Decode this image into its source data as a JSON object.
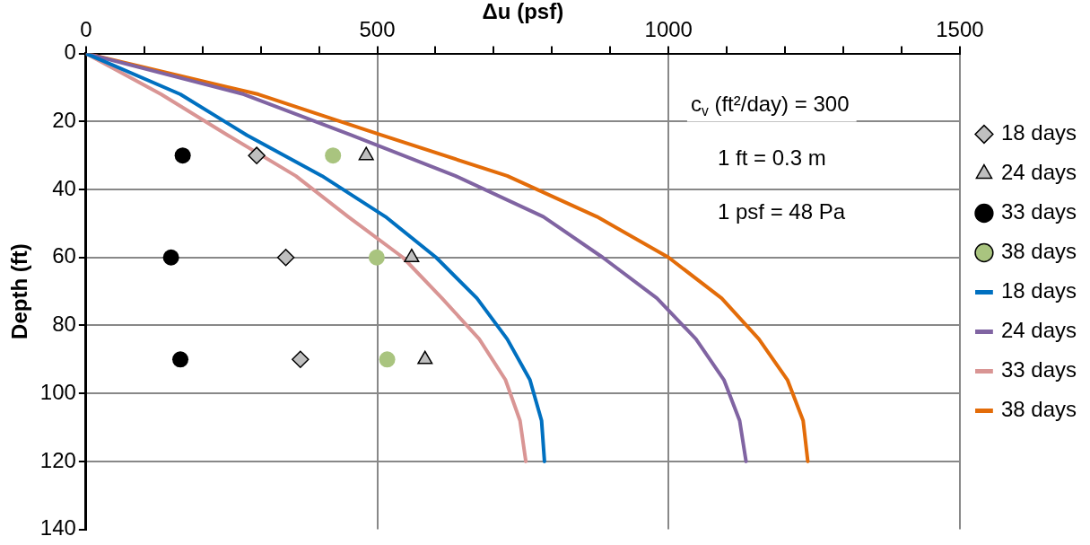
{
  "chart_data": {
    "type": "line",
    "xlabel": "Δu (psf)",
    "ylabel": "Depth (ft)",
    "xlim": [
      0,
      1500
    ],
    "ylim": [
      140,
      0
    ],
    "xticks": [
      0,
      {
        "value": 100,
        "label": null
      },
      {
        "value": 200,
        "label": null
      },
      {
        "value": 300,
        "label": null
      },
      {
        "value": 400,
        "label": null
      },
      500,
      {
        "value": 600,
        "label": null
      },
      {
        "value": 700,
        "label": null
      },
      {
        "value": 800,
        "label": null
      },
      {
        "value": 900,
        "label": null
      },
      1000,
      {
        "value": 1100,
        "label": null
      },
      {
        "value": 1200,
        "label": null
      },
      {
        "value": 1300,
        "label": null
      },
      {
        "value": 1400,
        "label": null
      },
      1500
    ],
    "yticks": [
      0,
      20,
      40,
      60,
      80,
      100,
      120,
      140
    ],
    "grid": true,
    "legend": "right",
    "annotations": [
      "c$_{v}$ (ft²/day) = 300",
      "1 ft = 0.3 m",
      "1 psf = 48 Pa"
    ],
    "series": [
      {
        "name": "18 days",
        "type": "scatter",
        "marker": "diamond",
        "color": "#bfbfbf",
        "x": [
          293,
          343,
          368
        ],
        "values": [
          30,
          60,
          90
        ]
      },
      {
        "name": "24 days",
        "type": "scatter",
        "marker": "triangle",
        "color": "#bfbfbf",
        "x": [
          481,
          559,
          582
        ],
        "values": [
          30,
          60,
          90
        ]
      },
      {
        "name": "33 days",
        "type": "scatter",
        "marker": "circle",
        "color": "#000000",
        "x": [
          166,
          146,
          162
        ],
        "values": [
          30,
          60,
          90
        ]
      },
      {
        "name": "38 days",
        "type": "scatter",
        "marker": "circle",
        "color": "#a9c47f",
        "x": [
          424,
          499,
          517
        ],
        "values": [
          30,
          60,
          90
        ]
      },
      {
        "name": "18 days",
        "color": "#0070c0",
        "x": [
          0,
          162,
          276,
          405,
          514,
          601,
          671,
          723,
          762,
          782,
          787
        ],
        "values": [
          0,
          12,
          24,
          36,
          48,
          60,
          72,
          84,
          96,
          108,
          120
        ]
      },
      {
        "name": "24 days",
        "color": "#8064a2",
        "x": [
          0,
          271,
          455,
          634,
          785,
          887,
          980,
          1047,
          1095,
          1122,
          1133
        ],
        "values": [
          0,
          12,
          24,
          36,
          48,
          60,
          72,
          84,
          96,
          108,
          120
        ]
      },
      {
        "name": "33 days",
        "color": "#d99594",
        "x": [
          0,
          129,
          243,
          360,
          450,
          544,
          611,
          675,
          720,
          745,
          755
        ],
        "values": [
          0,
          12,
          24,
          36,
          48,
          60,
          72,
          84,
          96,
          108,
          120
        ]
      },
      {
        "name": "38 days",
        "color": "#e36c09",
        "x": [
          0,
          296,
          507,
          723,
          877,
          1000,
          1091,
          1155,
          1204,
          1231,
          1239
        ],
        "values": [
          0,
          12,
          24,
          36,
          48,
          60,
          72,
          84,
          96,
          108,
          120
        ]
      }
    ]
  }
}
